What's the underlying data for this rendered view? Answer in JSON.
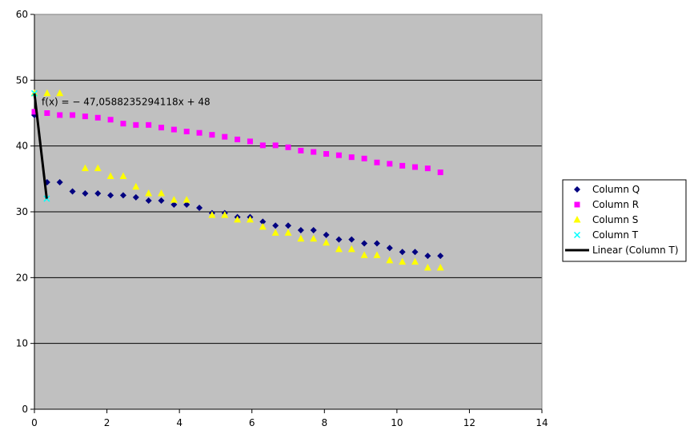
{
  "chart_data": {
    "type": "scatter",
    "title": "",
    "xlabel": "",
    "ylabel": "",
    "xlim": [
      0,
      14
    ],
    "ylim": [
      0,
      60
    ],
    "x_ticks": [
      "0",
      "2",
      "4",
      "6",
      "8",
      "10",
      "12",
      "14"
    ],
    "y_ticks": [
      "0",
      "10",
      "20",
      "30",
      "40",
      "50",
      "60"
    ],
    "grid": "horizontal",
    "plot_background": "#c0c0c0",
    "legend_position": "right",
    "series": [
      {
        "name": "Column Q",
        "marker": "diamond",
        "color": "#000080",
        "x": [
          0,
          0.35,
          0.7,
          1.05,
          1.4,
          1.75,
          2.1,
          2.45,
          2.8,
          3.15,
          3.5,
          3.85,
          4.2,
          4.55,
          4.9,
          5.25,
          5.6,
          5.95,
          6.3,
          6.65,
          7,
          7.35,
          7.7,
          8.05,
          8.4,
          8.75,
          9.1,
          9.45,
          9.8,
          10.15,
          10.5,
          10.85,
          11.2
        ],
        "y": [
          44.7,
          34.5,
          34.5,
          33.1,
          32.8,
          32.8,
          32.5,
          32.5,
          32.2,
          31.7,
          31.7,
          31.1,
          31.1,
          30.6,
          29.8,
          29.8,
          29.2,
          29.2,
          28.5,
          27.9,
          27.9,
          27.2,
          27.2,
          26.5,
          25.8,
          25.8,
          25.2,
          25.2,
          24.5,
          23.9,
          23.9,
          23.3,
          23.3
        ]
      },
      {
        "name": "Column R",
        "marker": "square",
        "color": "#ff00ff",
        "x": [
          0,
          0.35,
          0.7,
          1.05,
          1.4,
          1.75,
          2.1,
          2.45,
          2.8,
          3.15,
          3.5,
          3.85,
          4.2,
          4.55,
          4.9,
          5.25,
          5.6,
          5.95,
          6.3,
          6.65,
          7,
          7.35,
          7.7,
          8.05,
          8.4,
          8.75,
          9.1,
          9.45,
          9.8,
          10.15,
          10.5,
          10.85,
          11.2
        ],
        "y": [
          45.2,
          45,
          44.7,
          44.7,
          44.5,
          44.3,
          44,
          43.4,
          43.2,
          43.2,
          42.8,
          42.5,
          42.2,
          42,
          41.7,
          41.4,
          41,
          40.7,
          40.1,
          40.1,
          39.8,
          39.3,
          39.1,
          38.8,
          38.6,
          38.3,
          38.1,
          37.5,
          37.3,
          37,
          36.8,
          36.6,
          36
        ]
      },
      {
        "name": "Column S",
        "marker": "triangle",
        "color": "#ffff00",
        "x": [
          0,
          0.35,
          0.7,
          1.4,
          1.75,
          2.1,
          2.45,
          2.8,
          3.15,
          3.5,
          3.85,
          4.2,
          4.9,
          5.25,
          5.6,
          5.95,
          6.3,
          6.65,
          7,
          7.35,
          7.7,
          8.05,
          8.4,
          8.75,
          9.1,
          9.45,
          9.8,
          10.15,
          10.5,
          10.85,
          11.2
        ],
        "y": [
          48,
          48,
          48,
          36.6,
          36.6,
          35.4,
          35.4,
          33.8,
          32.8,
          32.8,
          31.8,
          31.8,
          29.5,
          29.5,
          28.8,
          28.8,
          27.7,
          26.8,
          26.8,
          25.9,
          25.9,
          25.3,
          24.3,
          24.3,
          23.4,
          23.4,
          22.6,
          22.4,
          22.4,
          21.5,
          21.5
        ]
      },
      {
        "name": "Column T",
        "marker": "x",
        "color": "#00ffff",
        "x": [
          0,
          0.34
        ],
        "y": [
          48,
          32
        ]
      },
      {
        "name": "Linear (Column T)",
        "marker": "line",
        "color": "#000000",
        "trendline": {
          "slope": -47.0588235294118,
          "intercept": 48,
          "x_range": [
            0,
            0.34
          ]
        }
      }
    ],
    "annotations": [
      {
        "text": "f(x) = − 47,0588235294118x + 48",
        "x": 0.2,
        "y": 46.2
      }
    ]
  }
}
